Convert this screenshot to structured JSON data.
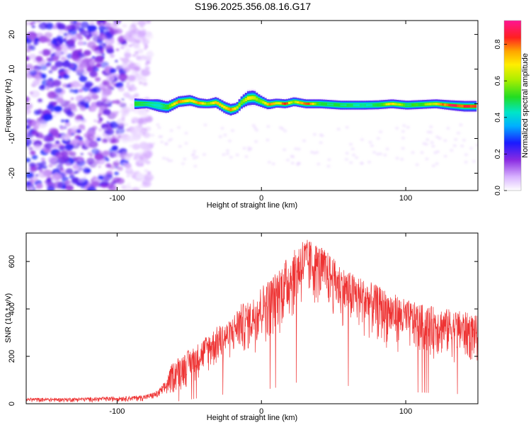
{
  "figure_title": "S196.2025.356.08.16.G17",
  "chart_data": [
    {
      "type": "heatmap",
      "xlabel": "Height of straight line (km)",
      "ylabel": "Frequency (Hz)",
      "xlim": [
        -163,
        150
      ],
      "ylim": [
        -25,
        24
      ],
      "x_ticks": [
        -100,
        0,
        100
      ],
      "y_ticks": [
        -20,
        -10,
        0,
        10,
        20
      ],
      "x_tick_labels": [
        "-100",
        "0",
        "100"
      ],
      "y_tick_labels": [
        "-20",
        "-10",
        "0",
        "10",
        "20"
      ],
      "noise_region_x": [
        -163,
        -77
      ],
      "ridge": {
        "x": [
          -88,
          -80,
          -72,
          -66,
          -58,
          -50,
          -44,
          -38,
          -32,
          -26,
          -22,
          -18,
          -14,
          -10,
          -6,
          -2,
          4,
          10,
          16,
          22,
          30,
          40,
          55,
          70,
          80,
          90,
          100,
          110,
          120,
          130,
          140,
          148
        ],
        "freq": [
          0,
          0,
          -0.5,
          -1,
          0.6,
          1.0,
          0.2,
          0,
          0.4,
          -1.1,
          -1.7,
          -1.3,
          0.6,
          1.6,
          1.8,
          0.9,
          -0.2,
          0.2,
          0,
          0.6,
          0,
          0,
          -0.4,
          -0.4,
          -0.3,
          0,
          -0.4,
          -0.2,
          0,
          -0.4,
          -0.7,
          -0.7
        ],
        "amplitude": [
          0.55,
          0.5,
          0.45,
          0.55,
          0.85,
          0.7,
          0.85,
          0.6,
          0.8,
          0.75,
          0.85,
          0.7,
          0.6,
          0.75,
          0.7,
          0.6,
          0.8,
          0.7,
          0.85,
          0.6,
          0.9,
          0.5,
          0.5,
          0.45,
          0.5,
          0.75,
          0.5,
          0.55,
          0.7,
          0.9,
          0.85,
          0.9
        ],
        "width_hz": [
          1.2,
          1.0,
          1.4,
          1.3,
          1.2,
          1.2,
          1.1,
          1.0,
          1.2,
          1.3,
          1.3,
          1.2,
          1.4,
          1.6,
          1.6,
          1.3,
          1.1,
          1.0,
          1.0,
          1.0,
          1.0,
          1.0,
          1.0,
          1.0,
          1.0,
          1.0,
          1.0,
          1.0,
          1.0,
          1.1,
          1.2,
          1.2
        ]
      },
      "colorbar": {
        "label": "Normalized spectral amplitude",
        "range": [
          0.0,
          0.93
        ],
        "ticks": [
          0.0,
          0.2,
          0.4,
          0.6,
          0.8
        ],
        "tick_labels": [
          "0.0",
          "0.2",
          "0.4",
          "0.6",
          "0.8"
        ]
      }
    },
    {
      "type": "line",
      "series_name": "SNR",
      "color": "#ee3333",
      "xlabel": "Height of straight line (km)",
      "ylabel": "SNR (10 * v/v)",
      "xlim": [
        -163,
        150
      ],
      "ylim": [
        0,
        720
      ],
      "x_ticks": [
        -100,
        0,
        100
      ],
      "y_ticks": [
        0,
        200,
        400,
        600
      ],
      "x_tick_labels": [
        "-100",
        "0",
        "100"
      ],
      "y_tick_labels": [
        "0",
        "200",
        "400",
        "600"
      ],
      "envelope": {
        "x": [
          -163,
          -140,
          -110,
          -90,
          -80,
          -72,
          -66,
          -62,
          -58,
          -52,
          -45,
          -38,
          -30,
          -22,
          -15,
          -8,
          0,
          8,
          15,
          22,
          28,
          34,
          40,
          46,
          52,
          60,
          70,
          80,
          90,
          100,
          110,
          120,
          130,
          140,
          150
        ],
        "upper": [
          25,
          24,
          28,
          32,
          38,
          55,
          100,
          170,
          195,
          220,
          250,
          290,
          330,
          350,
          420,
          430,
          500,
          540,
          600,
          640,
          700,
          690,
          670,
          640,
          600,
          560,
          530,
          500,
          470,
          440,
          420,
          410,
          400,
          390,
          370
        ],
        "lower": [
          5,
          5,
          6,
          8,
          10,
          15,
          20,
          30,
          40,
          60,
          90,
          110,
          140,
          170,
          190,
          200,
          230,
          260,
          300,
          340,
          380,
          400,
          390,
          370,
          340,
          300,
          270,
          240,
          220,
          200,
          190,
          180,
          170,
          160,
          160
        ]
      }
    }
  ]
}
